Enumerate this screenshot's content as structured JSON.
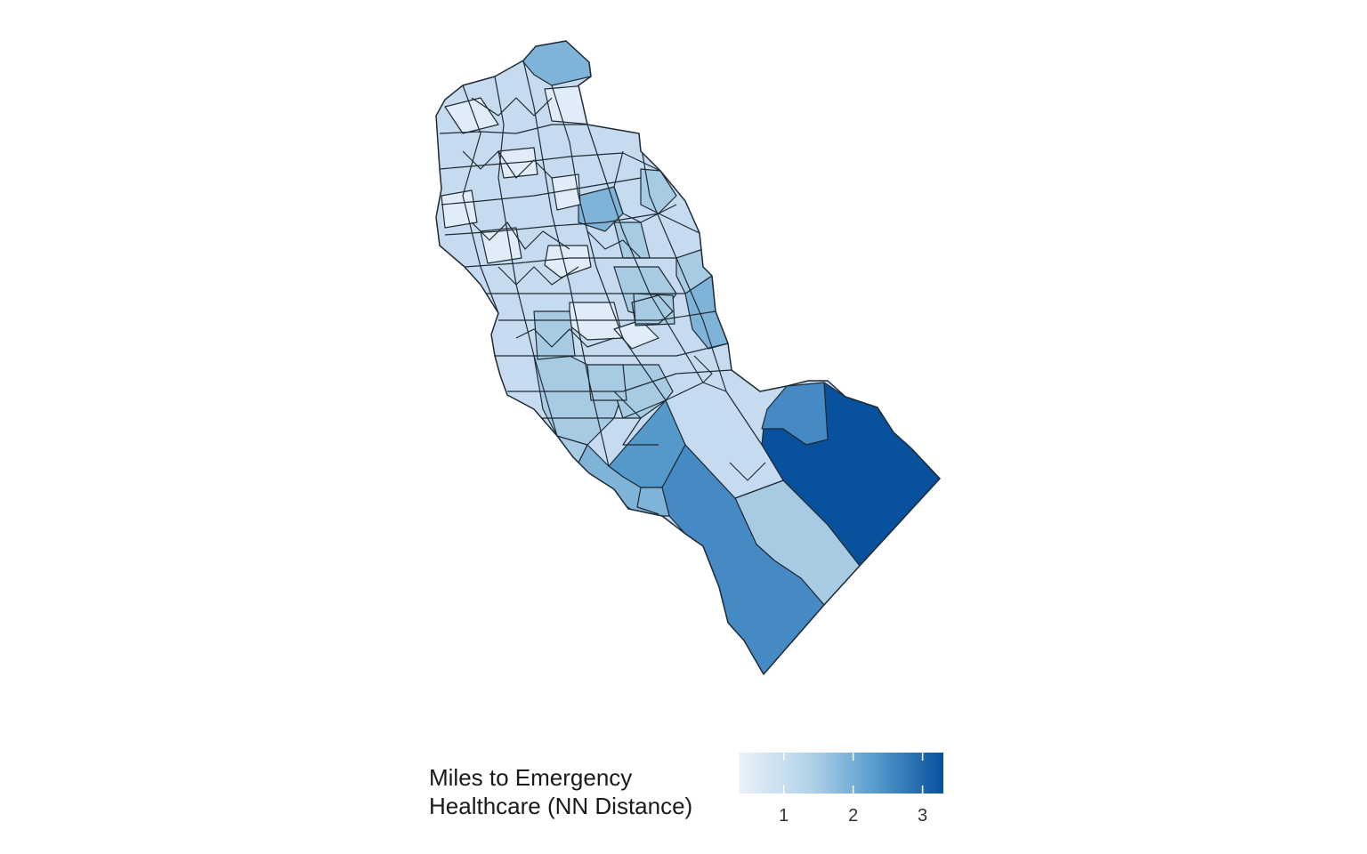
{
  "legend": {
    "title_line1": "Miles to Emergency",
    "title_line2": "Healthcare (NN Distance)",
    "ticks": [
      "1",
      "2",
      "3"
    ],
    "scale_min": 0.35,
    "scale_max": 3.3,
    "tick_values": [
      1,
      2,
      3
    ],
    "color_low": "#eaf2fb",
    "color_high": "#08519c"
  },
  "map": {
    "outline_color": "#1f2a33",
    "colors": {
      "very_light": "#e0ecf7",
      "light": "#c6dbef",
      "light_medium": "#a6cbe3",
      "medium": "#7fb3d8",
      "medium_strong": "#5599cb",
      "strong": "#4589c5",
      "darkest": "#08519c"
    }
  }
}
